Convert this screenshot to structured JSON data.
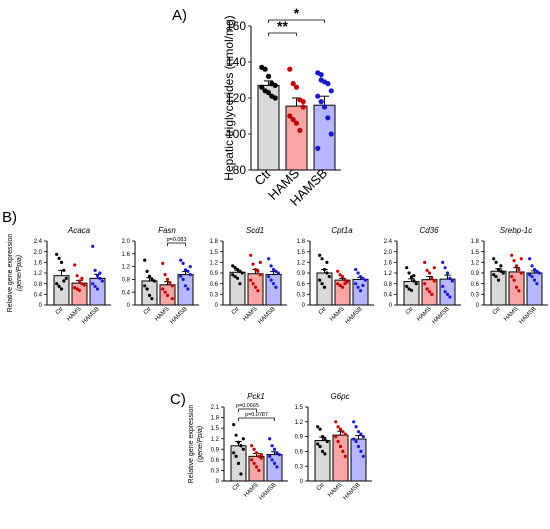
{
  "panels": {
    "A": "A)",
    "B": "B)",
    "C": "C)"
  },
  "colors": {
    "ctr_fill": "#d9d9d9",
    "hams_fill": "#f7a5a5",
    "hamsb_fill": "#b7b7ff",
    "ctr_dot": "#000000",
    "hams_dot": "#c00000",
    "hamsb_dot": "#1a1acc"
  },
  "chart_data": [
    {
      "type": "bar",
      "panel": "A",
      "categories": [
        "Ctr",
        "HAMS",
        "HAMSB"
      ],
      "ylabel": "Hepatic triglycerides (nmol/mg)",
      "ylim": [
        80,
        160
      ],
      "yticks": [
        "80",
        "100",
        "120",
        "140",
        "160"
      ],
      "ytick_values": [
        80,
        100,
        120,
        140,
        160
      ],
      "means": [
        127,
        115.5,
        116
      ],
      "sem": [
        2.5,
        4.5,
        5
      ],
      "points": [
        [
          137,
          136,
          132,
          128,
          127,
          126,
          124,
          123,
          121,
          120
        ],
        [
          136,
          128,
          126,
          119,
          115,
          110,
          108,
          106,
          102,
          118
        ],
        [
          134,
          133,
          129,
          128,
          124,
          121,
          118,
          115,
          109,
          100,
          92,
          130
        ]
      ],
      "annotations": [
        {
          "text": "**",
          "from": 0,
          "to": 1
        },
        {
          "text": "*",
          "from": 0,
          "to": 2
        }
      ]
    },
    {
      "type": "bar",
      "panel": "B",
      "title": "Acaca",
      "categories": [
        "Ctr",
        "HAMS",
        "HAMSB"
      ],
      "ylabel": "Relative gene expression (gene/Ppia)",
      "ylim": [
        0,
        2.4
      ],
      "yticks": [
        "0",
        "0.4",
        "0.8",
        "1.2",
        "1.6",
        "2.0",
        "2.4"
      ],
      "ytick_values": [
        0,
        0.4,
        0.8,
        1.2,
        1.6,
        2.0,
        2.4
      ],
      "means": [
        1.1,
        0.82,
        1.0
      ],
      "sem": [
        0.2,
        0.1,
        0.15
      ],
      "points": [
        [
          1.9,
          1.75,
          1.6,
          1.3,
          1.0,
          0.8,
          0.7,
          0.6,
          0.9
        ],
        [
          1.5,
          1.1,
          0.9,
          0.8,
          0.75,
          0.65,
          0.6,
          0.55,
          1.0
        ],
        [
          2.2,
          1.3,
          1.1,
          1.0,
          0.9,
          0.8,
          0.7,
          0.6,
          1.2
        ]
      ]
    },
    {
      "type": "bar",
      "panel": "B",
      "title": "Fasn",
      "categories": [
        "Ctr",
        "HAMS",
        "HAMSB"
      ],
      "ylim": [
        0,
        2.0
      ],
      "yticks": [
        "0",
        "0.4",
        "0.8",
        "1.2",
        "1.6",
        "2.0"
      ],
      "ytick_values": [
        0,
        0.4,
        0.8,
        1.2,
        1.6,
        2.0
      ],
      "means": [
        0.75,
        0.63,
        0.95
      ],
      "sem": [
        0.1,
        0.1,
        0.1
      ],
      "points": [
        [
          1.4,
          1.05,
          0.9,
          0.8,
          0.75,
          0.6,
          0.5,
          0.3,
          0.2
        ],
        [
          1.3,
          0.95,
          0.8,
          0.7,
          0.6,
          0.5,
          0.4,
          0.3,
          0.7,
          0.2
        ],
        [
          1.4,
          1.3,
          1.1,
          1.05,
          0.95,
          0.9,
          0.8,
          0.6,
          0.5,
          1.2
        ]
      ],
      "annotations": [
        {
          "text": "p=0.083",
          "from": 1,
          "to": 2
        }
      ]
    },
    {
      "type": "bar",
      "panel": "B",
      "title": "Scd1",
      "categories": [
        "Ctr",
        "HAMS",
        "HAMSB"
      ],
      "ylim": [
        0,
        1.8
      ],
      "yticks": [
        "0",
        "0.3",
        "0.6",
        "0.9",
        "1.2",
        "1.5",
        "1.8"
      ],
      "ytick_values": [
        0,
        0.3,
        0.6,
        0.9,
        1.2,
        1.5,
        1.8
      ],
      "means": [
        0.92,
        0.88,
        0.86
      ],
      "sem": [
        0.06,
        0.12,
        0.08
      ],
      "points": [
        [
          1.1,
          1.05,
          1.0,
          0.95,
          0.9,
          0.85,
          0.8,
          0.75,
          0.6
        ],
        [
          1.4,
          1.15,
          1.0,
          0.95,
          0.85,
          0.7,
          0.6,
          0.5,
          0.4,
          1.2
        ],
        [
          1.3,
          1.1,
          1.0,
          0.95,
          0.9,
          0.8,
          0.7,
          0.6,
          0.5
        ]
      ]
    },
    {
      "type": "bar",
      "panel": "B",
      "title": "Cpt1a",
      "categories": [
        "Ctr",
        "HAMS",
        "HAMSB"
      ],
      "ylim": [
        0,
        1.8
      ],
      "yticks": [
        "0",
        "0.3",
        "0.6",
        "0.9",
        "1.2",
        "1.5",
        "1.8"
      ],
      "ytick_values": [
        0,
        0.3,
        0.6,
        0.9,
        1.2,
        1.5,
        1.8
      ],
      "means": [
        0.9,
        0.7,
        0.72
      ],
      "sem": [
        0.1,
        0.05,
        0.06
      ],
      "points": [
        [
          1.4,
          1.3,
          1.0,
          0.9,
          0.8,
          0.7,
          0.6,
          0.5,
          1.2
        ],
        [
          0.95,
          0.85,
          0.8,
          0.7,
          0.65,
          0.6,
          0.55,
          0.5,
          0.6
        ],
        [
          1.0,
          0.9,
          0.8,
          0.75,
          0.7,
          0.6,
          0.5,
          0.4,
          0.55
        ]
      ]
    },
    {
      "type": "bar",
      "panel": "B",
      "title": "Cd36",
      "categories": [
        "Ctr",
        "HAMS",
        "HAMSB"
      ],
      "ylim": [
        0,
        2.4
      ],
      "yticks": [
        "0",
        "0.4",
        "0.8",
        "1.2",
        "1.6",
        "2.0",
        "2.4"
      ],
      "ytick_values": [
        0,
        0.4,
        0.8,
        1.2,
        1.6,
        2.0,
        2.4
      ],
      "means": [
        0.88,
        0.95,
        0.97
      ],
      "sem": [
        0.1,
        0.12,
        0.15
      ],
      "points": [
        [
          1.4,
          1.2,
          1.05,
          0.9,
          0.8,
          0.7,
          0.6,
          0.55,
          1.1
        ],
        [
          1.6,
          1.3,
          1.2,
          1.0,
          0.9,
          0.8,
          0.6,
          0.5,
          0.4,
          1.4
        ],
        [
          1.6,
          1.4,
          1.2,
          1.0,
          0.9,
          0.7,
          0.5,
          0.4,
          0.3
        ]
      ]
    },
    {
      "type": "bar",
      "panel": "B",
      "title": "Srebp-1c",
      "categories": [
        "Ctr",
        "HAMS",
        "HAMSB"
      ],
      "ylim": [
        0,
        1.8
      ],
      "yticks": [
        "0",
        "0.3",
        "0.6",
        "0.9",
        "1.2",
        "1.5",
        "1.8"
      ],
      "ytick_values": [
        0,
        0.3,
        0.6,
        0.9,
        1.2,
        1.5,
        1.8
      ],
      "means": [
        0.95,
        0.93,
        0.9
      ],
      "sem": [
        0.07,
        0.12,
        0.06
      ],
      "points": [
        [
          1.3,
          1.2,
          1.0,
          0.95,
          0.9,
          0.85,
          0.8,
          0.7,
          1.1
        ],
        [
          1.4,
          1.25,
          1.1,
          1.0,
          0.9,
          0.8,
          0.7,
          0.5,
          0.4,
          1.3
        ],
        [
          1.3,
          1.1,
          1.0,
          0.95,
          0.9,
          0.85,
          0.8,
          0.7,
          0.6
        ]
      ]
    },
    {
      "type": "bar",
      "panel": "C",
      "title": "Pck1",
      "categories": [
        "Ctr",
        "HAMS",
        "HAMSB"
      ],
      "ylabel": "Relative gene expression (gene/Ppia)",
      "ylim": [
        0,
        2.1
      ],
      "yticks": [
        "0",
        "0.3",
        "0.6",
        "0.9",
        "1.2",
        "1.5",
        "1.8",
        "2.1"
      ],
      "ytick_values": [
        0,
        0.3,
        0.6,
        0.9,
        1.2,
        1.5,
        1.8,
        2.1
      ],
      "means": [
        1.0,
        0.7,
        0.75
      ],
      "sem": [
        0.12,
        0.08,
        0.08
      ],
      "points": [
        [
          1.6,
          1.3,
          1.1,
          1.0,
          0.9,
          0.8,
          0.7,
          0.5,
          0.2,
          1.2
        ],
        [
          1.0,
          0.9,
          0.8,
          0.7,
          0.65,
          0.6,
          0.5,
          0.4,
          0.3,
          0.75
        ],
        [
          1.2,
          1.0,
          0.9,
          0.8,
          0.75,
          0.7,
          0.6,
          0.5,
          0.4
        ]
      ],
      "annotations": [
        {
          "text": "p=0.0665",
          "from": 0,
          "to": 1
        },
        {
          "text": "p=0.0787",
          "from": 0,
          "to": 2
        }
      ]
    },
    {
      "type": "bar",
      "panel": "C",
      "title": "G6pc",
      "categories": [
        "Ctr",
        "HAMS",
        "HAMSB"
      ],
      "ylim": [
        0,
        1.5
      ],
      "yticks": [
        "0",
        "0.3",
        "0.6",
        "0.9",
        "1.2",
        "1.5"
      ],
      "ytick_values": [
        0,
        0.3,
        0.6,
        0.9,
        1.2,
        1.5
      ],
      "means": [
        0.82,
        0.93,
        0.85
      ],
      "sem": [
        0.07,
        0.08,
        0.07
      ],
      "points": [
        [
          1.1,
          1.05,
          0.9,
          0.85,
          0.8,
          0.75,
          0.7,
          0.6,
          0.55
        ],
        [
          1.2,
          1.1,
          1.05,
          1.0,
          0.95,
          0.9,
          0.8,
          0.7,
          0.6,
          0.5
        ],
        [
          1.2,
          1.1,
          1.0,
          0.95,
          0.9,
          0.85,
          0.8,
          0.7,
          0.6,
          0.5
        ]
      ]
    }
  ]
}
